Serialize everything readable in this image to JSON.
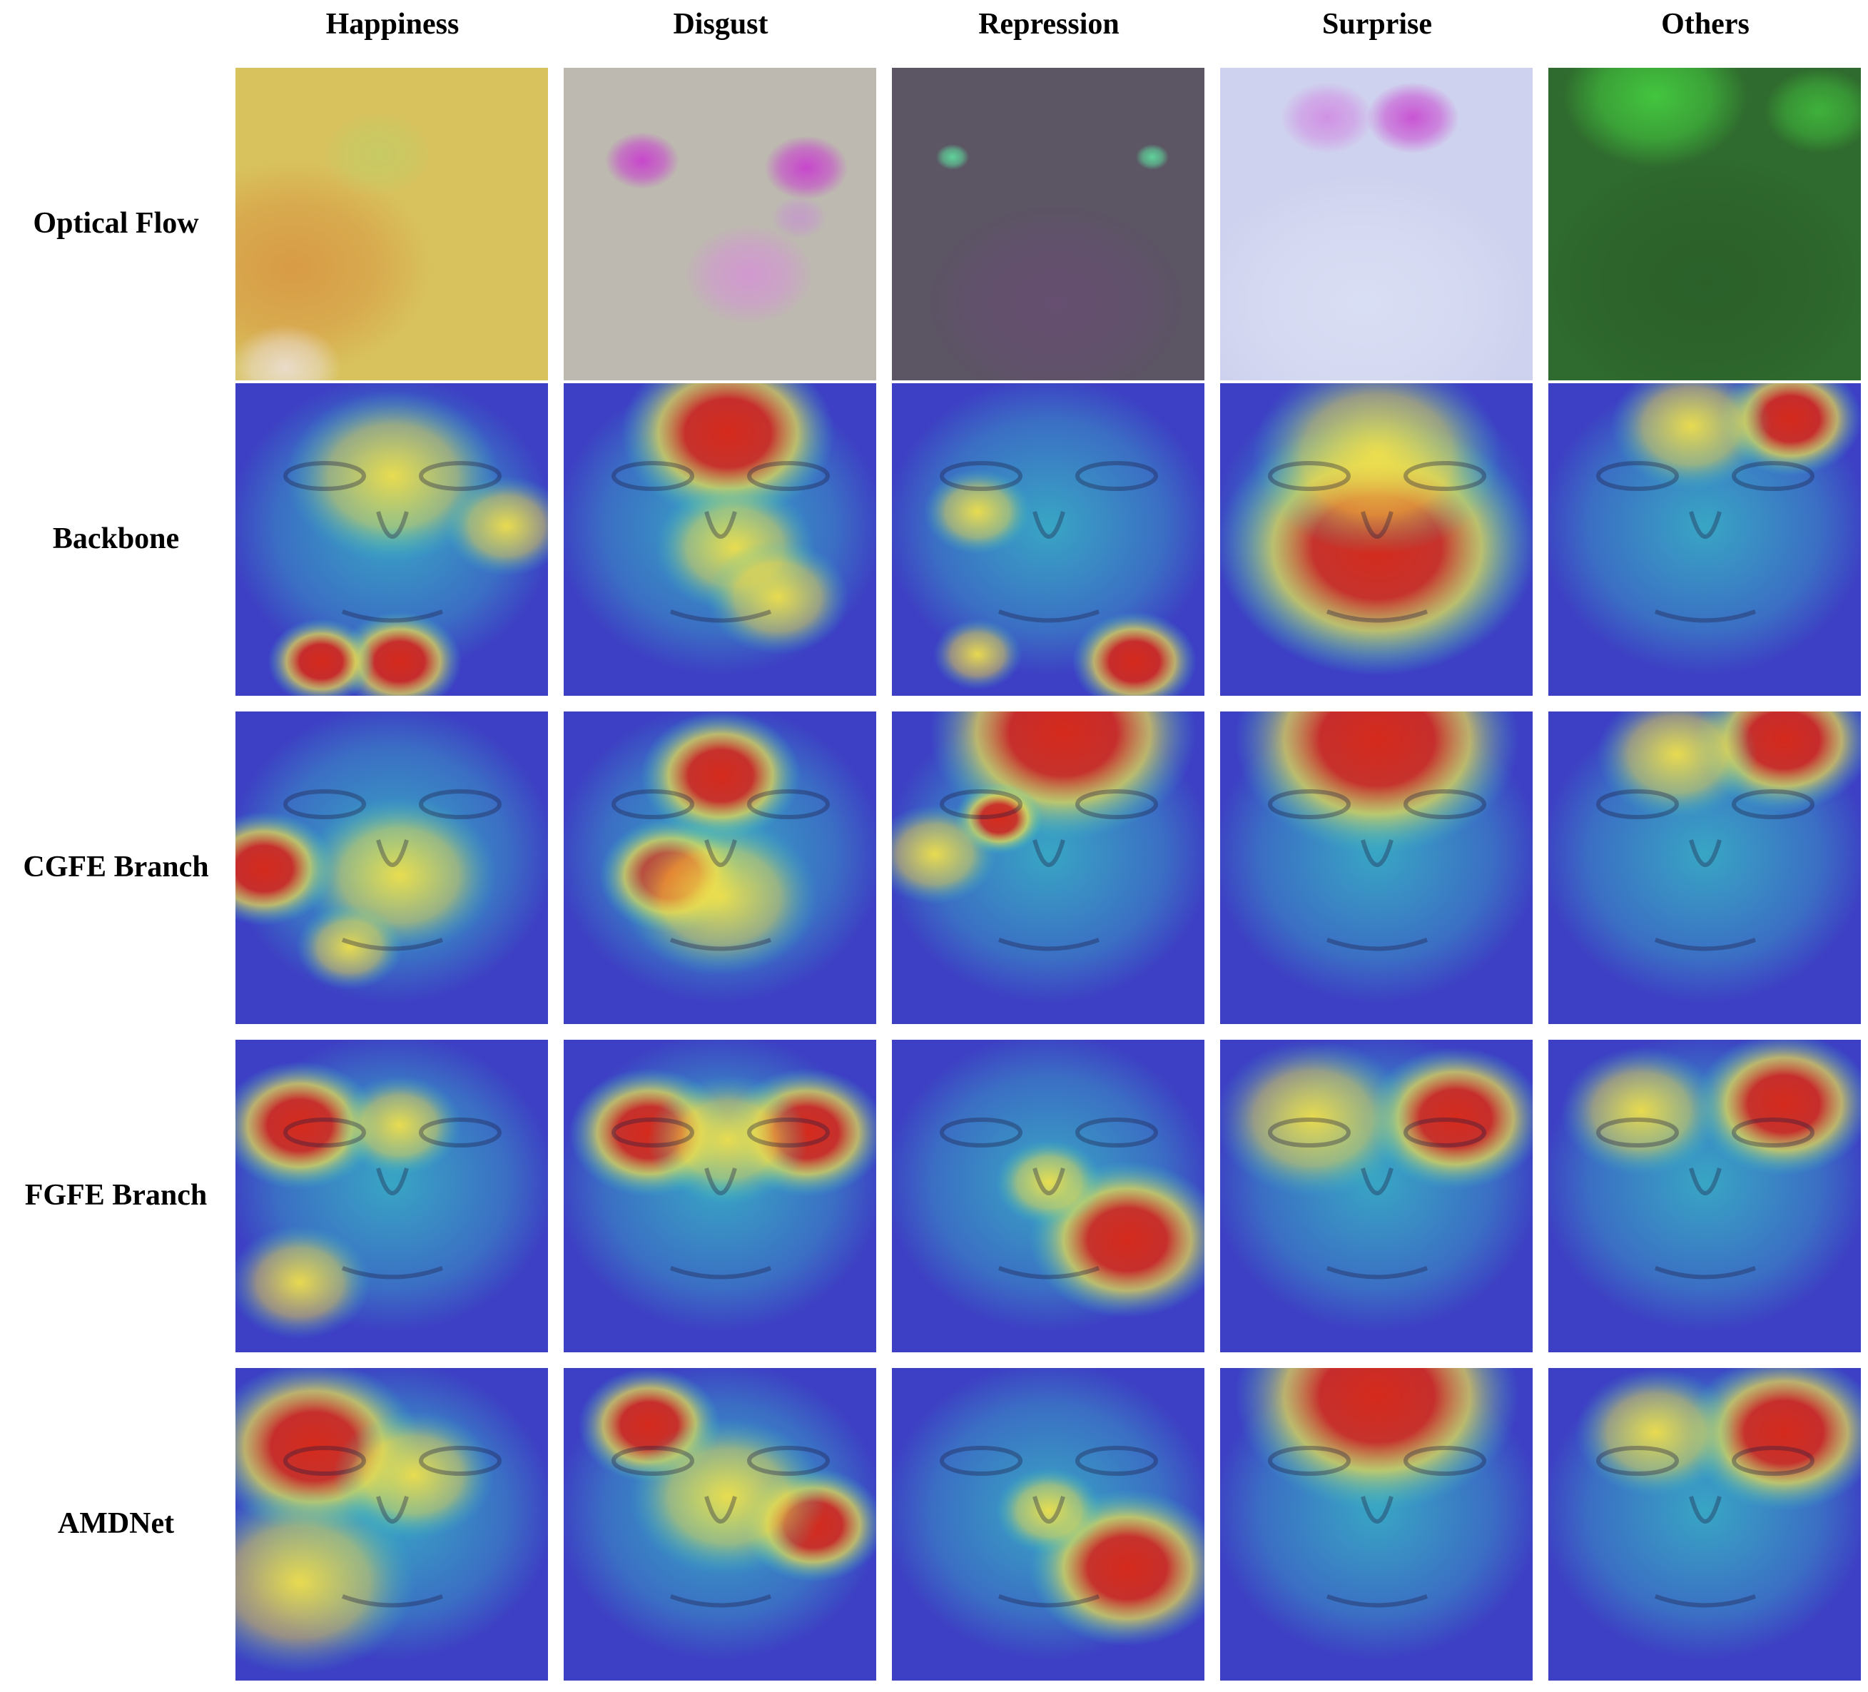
{
  "columns": [
    "Happiness",
    "Disgust",
    "Repression",
    "Surprise",
    "Others"
  ],
  "rows": [
    "Optical Flow",
    "Backbone",
    "CGFE Branch",
    "FGFE Branch",
    "AMDNet"
  ],
  "optical_flow_colors": [
    "#d8c25e",
    "#bdb9b0",
    "#5b5564",
    "#cfd2ee",
    "#2f6a2e"
  ],
  "heatmap_palette": {
    "low": "#3d3fc4",
    "mid": "#37c8c4",
    "high_yellow": "#f1e04a",
    "high_red": "#d52a1c"
  }
}
